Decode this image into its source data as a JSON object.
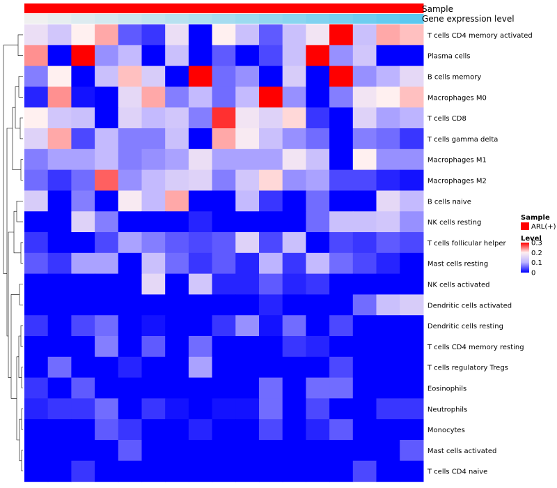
{
  "chart_data": {
    "type": "heatmap",
    "title": "",
    "annotations": {
      "sample_label": "Sample",
      "expression_label": "Gene expression level",
      "sample_color": "#ff0000",
      "expression_gradient": [
        "#f0f0f0",
        "#5bc8f0"
      ]
    },
    "rows": [
      "T cells CD4 memory activated",
      "Plasma cells",
      "B cells memory",
      "Macrophages M0",
      "T cells CD8",
      "T cells gamma delta",
      "Macrophages M1",
      "Macrophages M2",
      "B cells naive",
      "NK cells resting",
      "T cells follicular helper",
      "Mast cells resting",
      "NK cells activated",
      "Dendritic cells activated",
      "Dendritic cells resting",
      "T cells CD4 memory resting",
      "T cells regulatory  Tregs",
      "Eosinophils",
      "Neutrophils",
      "Monocytes",
      "Mast cells activated",
      "T cells CD4 naive"
    ],
    "n_cols": 17,
    "values": [
      [
        0.17,
        0.13,
        0.2,
        0.23,
        0.05,
        0.03,
        0.17,
        0.0,
        0.2,
        0.12,
        0.05,
        0.12,
        0.18,
        0.3,
        0.12,
        0.23,
        0.22
      ],
      [
        0.24,
        0.0,
        0.3,
        0.08,
        0.11,
        0.0,
        0.12,
        0.0,
        0.05,
        0.0,
        0.04,
        0.12,
        0.3,
        0.08,
        0.13,
        0.0,
        0.0
      ],
      [
        0.07,
        0.2,
        0.0,
        0.12,
        0.22,
        0.14,
        0.0,
        0.3,
        0.06,
        0.08,
        0.0,
        0.14,
        0.0,
        0.3,
        0.08,
        0.1,
        0.16
      ],
      [
        0.02,
        0.24,
        0.01,
        0.0,
        0.16,
        0.23,
        0.07,
        0.11,
        0.06,
        0.11,
        0.3,
        0.08,
        0.0,
        0.07,
        0.18,
        0.2,
        0.22
      ],
      [
        0.2,
        0.13,
        0.12,
        0.0,
        0.15,
        0.11,
        0.13,
        0.07,
        0.28,
        0.18,
        0.15,
        0.21,
        0.03,
        0.0,
        0.15,
        0.09,
        0.1
      ],
      [
        0.15,
        0.23,
        0.04,
        0.11,
        0.07,
        0.07,
        0.12,
        0.0,
        0.23,
        0.19,
        0.12,
        0.08,
        0.06,
        0.0,
        0.07,
        0.06,
        0.03
      ],
      [
        0.07,
        0.09,
        0.09,
        0.11,
        0.07,
        0.08,
        0.09,
        0.17,
        0.09,
        0.09,
        0.09,
        0.18,
        0.12,
        0.0,
        0.2,
        0.08,
        0.08
      ],
      [
        0.06,
        0.03,
        0.06,
        0.26,
        0.08,
        0.11,
        0.14,
        0.15,
        0.07,
        0.13,
        0.21,
        0.08,
        0.09,
        0.04,
        0.04,
        0.02,
        0.01
      ],
      [
        0.14,
        0.0,
        0.07,
        0.0,
        0.19,
        0.11,
        0.23,
        0.0,
        0.0,
        0.11,
        0.03,
        0.0,
        0.06,
        0.0,
        0.0,
        0.16,
        0.11
      ],
      [
        0.0,
        0.0,
        0.15,
        0.07,
        0.0,
        0.0,
        0.0,
        0.02,
        0.0,
        0.0,
        0.0,
        0.0,
        0.06,
        0.12,
        0.12,
        0.13,
        0.08
      ],
      [
        0.03,
        0.0,
        0.0,
        0.04,
        0.09,
        0.07,
        0.05,
        0.04,
        0.05,
        0.15,
        0.04,
        0.12,
        0.0,
        0.04,
        0.03,
        0.05,
        0.04
      ],
      [
        0.05,
        0.03,
        0.09,
        0.09,
        0.0,
        0.12,
        0.06,
        0.03,
        0.05,
        0.02,
        0.1,
        0.03,
        0.11,
        0.06,
        0.04,
        0.02,
        0.0
      ],
      [
        0.0,
        0.0,
        0.0,
        0.0,
        0.0,
        0.16,
        0.0,
        0.13,
        0.02,
        0.02,
        0.05,
        0.02,
        0.03,
        0.0,
        0.0,
        0.0,
        0.0
      ],
      [
        0.0,
        0.0,
        0.0,
        0.0,
        0.0,
        0.0,
        0.0,
        0.0,
        0.0,
        0.0,
        0.02,
        0.0,
        0.0,
        0.0,
        0.06,
        0.12,
        0.14
      ],
      [
        0.03,
        0.0,
        0.04,
        0.06,
        0.0,
        0.01,
        0.0,
        0.0,
        0.03,
        0.08,
        0.01,
        0.06,
        0.0,
        0.04,
        0.0,
        0.0,
        0.0
      ],
      [
        0.0,
        0.0,
        0.0,
        0.07,
        0.0,
        0.05,
        0.0,
        0.06,
        0.0,
        0.0,
        0.0,
        0.03,
        0.02,
        0.0,
        0.0,
        0.0,
        0.0
      ],
      [
        0.0,
        0.06,
        0.0,
        0.0,
        0.02,
        0.0,
        0.0,
        0.09,
        0.0,
        0.0,
        0.0,
        0.0,
        0.0,
        0.04,
        0.0,
        0.0,
        0.0
      ],
      [
        0.03,
        0.0,
        0.05,
        0.0,
        0.0,
        0.0,
        0.0,
        0.0,
        0.0,
        0.0,
        0.06,
        0.0,
        0.06,
        0.06,
        0.0,
        0.0,
        0.0
      ],
      [
        0.02,
        0.03,
        0.03,
        0.06,
        0.0,
        0.03,
        0.01,
        0.0,
        0.01,
        0.01,
        0.06,
        0.0,
        0.04,
        0.0,
        0.0,
        0.03,
        0.03
      ],
      [
        0.0,
        0.0,
        0.0,
        0.05,
        0.03,
        0.0,
        0.0,
        0.02,
        0.0,
        0.0,
        0.04,
        0.0,
        0.02,
        0.05,
        0.0,
        0.0,
        0.0
      ],
      [
        0.0,
        0.0,
        0.0,
        0.0,
        0.05,
        0.0,
        0.0,
        0.0,
        0.0,
        0.0,
        0.0,
        0.0,
        0.0,
        0.0,
        0.0,
        0.0,
        0.05
      ],
      [
        0.0,
        0.0,
        0.03,
        0.0,
        0.0,
        0.0,
        0.0,
        0.0,
        0.0,
        0.0,
        0.0,
        0.0,
        0.0,
        0.0,
        0.04,
        0.0,
        0.0
      ]
    ],
    "color_scale": {
      "domain": [
        0,
        0.1,
        0.2,
        0.3
      ],
      "colors": [
        "#0000ff",
        "#bdb4ff",
        "#fff0f0",
        "#ff0000"
      ]
    },
    "legend": {
      "position": "right",
      "sample_title": "Sample",
      "sample_item": "ARL(+)",
      "level_title": "Level",
      "level_ticks": [
        {
          "value": 0.3,
          "label": "0.3"
        },
        {
          "value": 0.2,
          "label": "0.2"
        },
        {
          "value": 0.1,
          "label": "0.1"
        },
        {
          "value": 0,
          "label": "0"
        }
      ]
    },
    "dendrogram": "rows"
  }
}
